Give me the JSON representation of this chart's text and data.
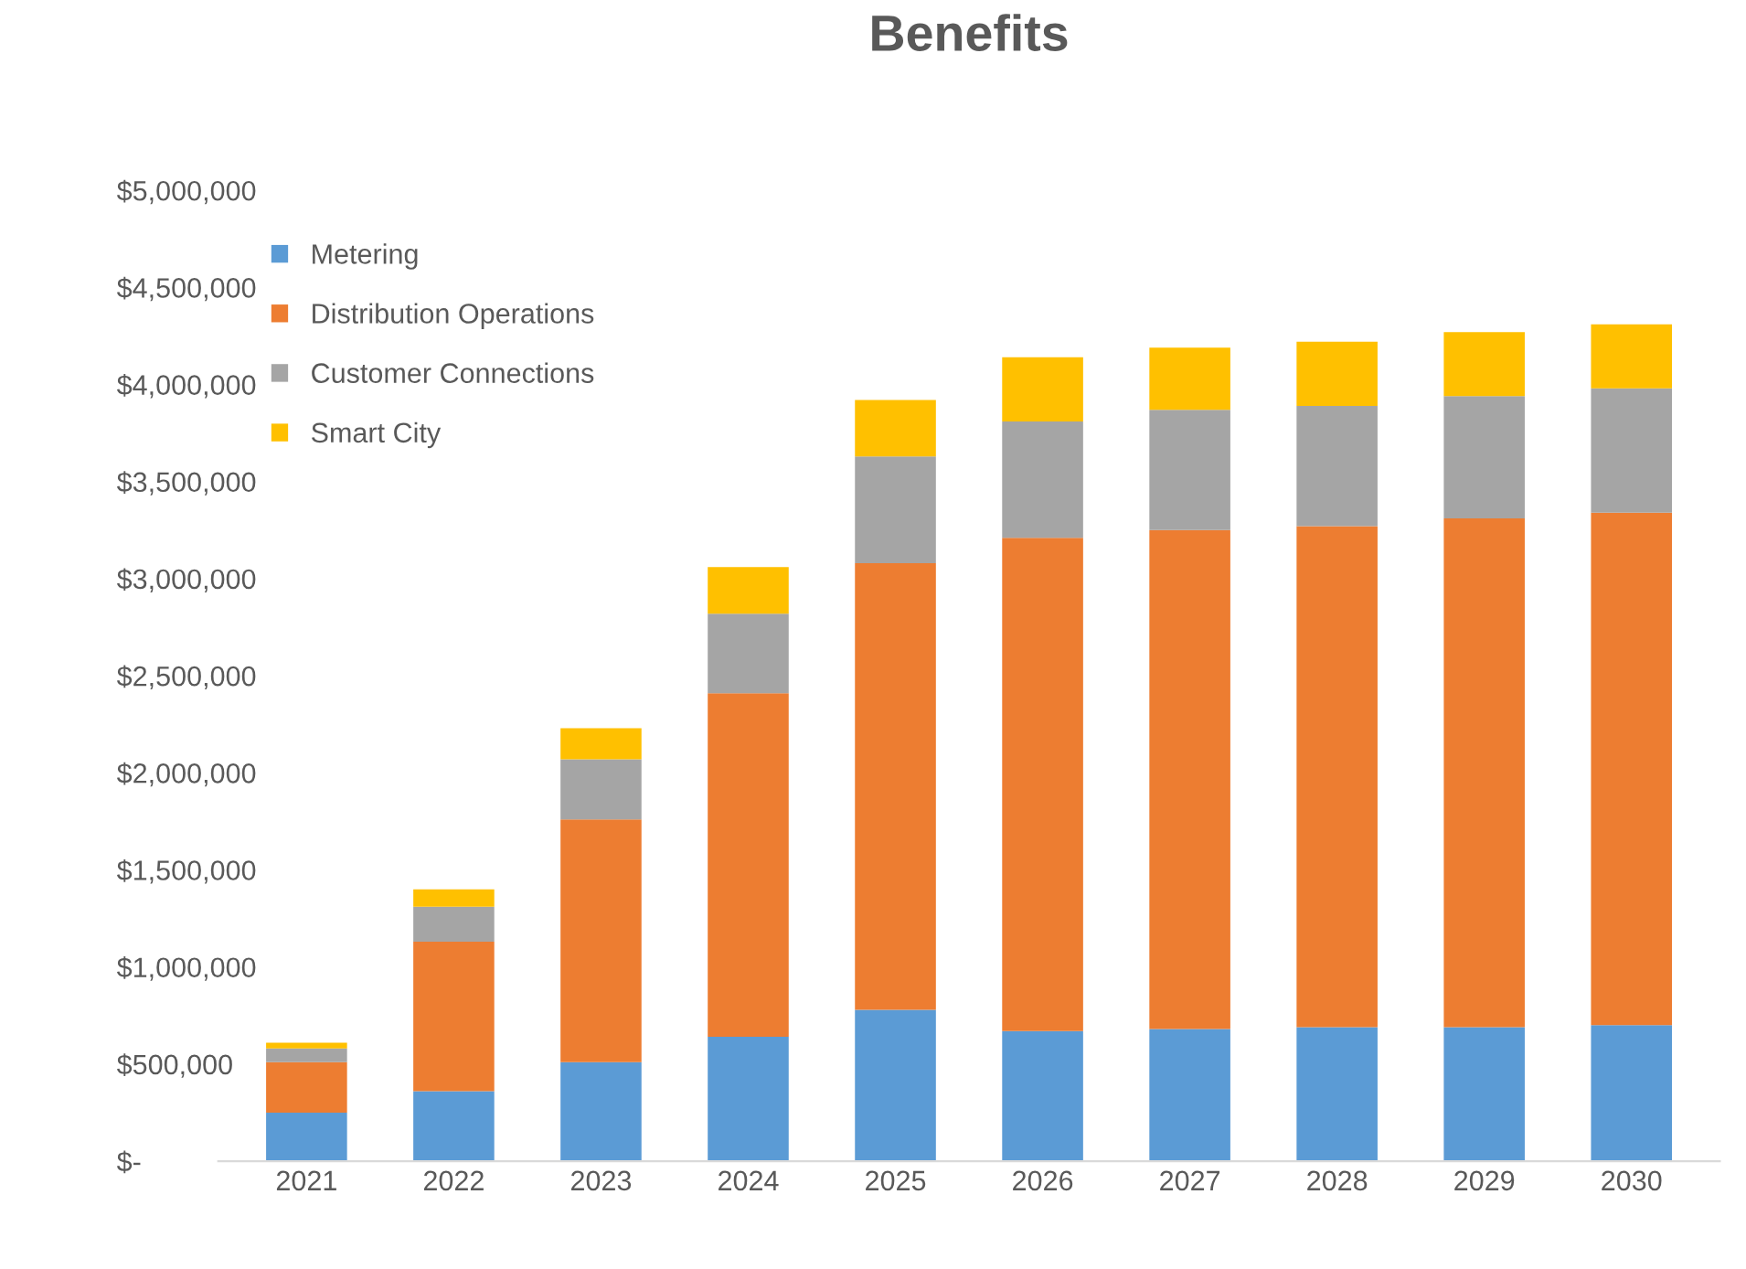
{
  "chart_data": {
    "type": "bar",
    "title": "Benefits",
    "stacked": true,
    "categories": [
      "2021",
      "2022",
      "2023",
      "2024",
      "2025",
      "2026",
      "2027",
      "2028",
      "2029",
      "2030"
    ],
    "series": [
      {
        "name": "Metering",
        "color": "#5b9bd5",
        "values": [
          250000,
          360000,
          510000,
          640000,
          780000,
          670000,
          680000,
          690000,
          690000,
          700000
        ]
      },
      {
        "name": "Distribution Operations",
        "color": "#ed7d31",
        "values": [
          260000,
          770000,
          1250000,
          1770000,
          2300000,
          2540000,
          2570000,
          2580000,
          2620000,
          2640000
        ]
      },
      {
        "name": "Customer Connections",
        "color": "#a5a5a5",
        "values": [
          70000,
          180000,
          310000,
          410000,
          550000,
          600000,
          620000,
          620000,
          630000,
          640000
        ]
      },
      {
        "name": "Smart City",
        "color": "#ffc000",
        "values": [
          30000,
          90000,
          160000,
          240000,
          290000,
          330000,
          320000,
          330000,
          330000,
          330000
        ]
      }
    ],
    "ylim": [
      0,
      5000000
    ],
    "yticks": [
      {
        "value": 0,
        "label": "$-"
      },
      {
        "value": 500000,
        "label": "$500,000"
      },
      {
        "value": 1000000,
        "label": "$1,000,000"
      },
      {
        "value": 1500000,
        "label": "$1,500,000"
      },
      {
        "value": 2000000,
        "label": "$2,000,000"
      },
      {
        "value": 2500000,
        "label": "$2,500,000"
      },
      {
        "value": 3000000,
        "label": "$3,000,000"
      },
      {
        "value": 3500000,
        "label": "$3,500,000"
      },
      {
        "value": 4000000,
        "label": "$4,000,000"
      },
      {
        "value": 4500000,
        "label": "$4,500,000"
      },
      {
        "value": 5000000,
        "label": "$5,000,000"
      }
    ],
    "grid": false,
    "legend": "top left"
  }
}
